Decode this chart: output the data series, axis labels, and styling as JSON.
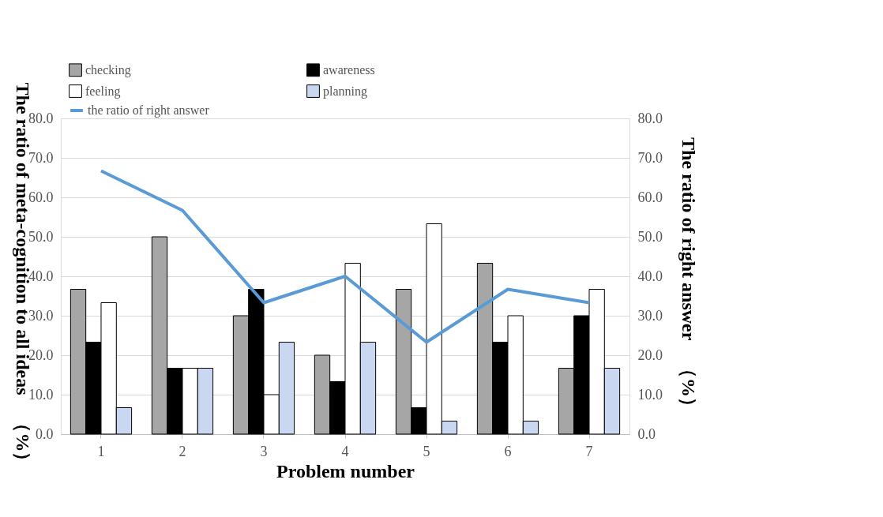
{
  "chart_data": {
    "type": "bar",
    "xlabel": "Problem number",
    "ylabel": "The ratio of meta-cognition to all ideas　（%）",
    "y2label": "The ratio of right answer　（%）",
    "categories": [
      "1",
      "2",
      "3",
      "4",
      "5",
      "6",
      "7"
    ],
    "series": [
      {
        "name": "checking",
        "color": "#a6a6a6",
        "values": [
          36.7,
          50.0,
          30.0,
          20.0,
          36.7,
          43.3,
          16.7
        ]
      },
      {
        "name": "awareness",
        "color": "#000000",
        "values": [
          23.3,
          16.7,
          36.7,
          13.3,
          6.7,
          23.3,
          30.0
        ]
      },
      {
        "name": "feeling",
        "color": "#ffffff",
        "values": [
          33.3,
          16.7,
          10.0,
          43.3,
          53.3,
          30.0,
          36.7
        ]
      },
      {
        "name": "planning",
        "color": "#c9d7f0",
        "values": [
          6.7,
          16.7,
          23.3,
          23.3,
          3.3,
          3.3,
          16.7
        ]
      },
      {
        "name": "the ratio of right answer",
        "type": "line",
        "axis": "y2",
        "color": "#5b9bd5",
        "values": [
          66.7,
          56.7,
          33.3,
          40.0,
          23.3,
          36.7,
          33.3
        ]
      }
    ],
    "ylim": [
      0,
      80
    ],
    "yticks": [
      {
        "value": 0,
        "label": "0.0"
      },
      {
        "value": 10,
        "label": "10.0"
      },
      {
        "value": 20,
        "label": "20.0"
      },
      {
        "value": 30,
        "label": "30.0"
      },
      {
        "value": 40,
        "label": "40.0"
      },
      {
        "value": 50,
        "label": "50.0"
      },
      {
        "value": 60,
        "label": "60.0"
      },
      {
        "value": 70,
        "label": "70.0"
      },
      {
        "value": 80,
        "label": "80.0"
      }
    ],
    "y2lim": [
      0,
      80
    ],
    "y2ticks": [
      {
        "value": 0,
        "label": "0.0"
      },
      {
        "value": 10,
        "label": "10.0"
      },
      {
        "value": 20,
        "label": "20.0"
      },
      {
        "value": 30,
        "label": "30.0"
      },
      {
        "value": 40,
        "label": "40.0"
      },
      {
        "value": 50,
        "label": "50.0"
      },
      {
        "value": 60,
        "label": "60.0"
      },
      {
        "value": 70,
        "label": "70.0"
      },
      {
        "value": 80,
        "label": "80.0"
      }
    ],
    "grid": "y",
    "legend": "top left"
  }
}
